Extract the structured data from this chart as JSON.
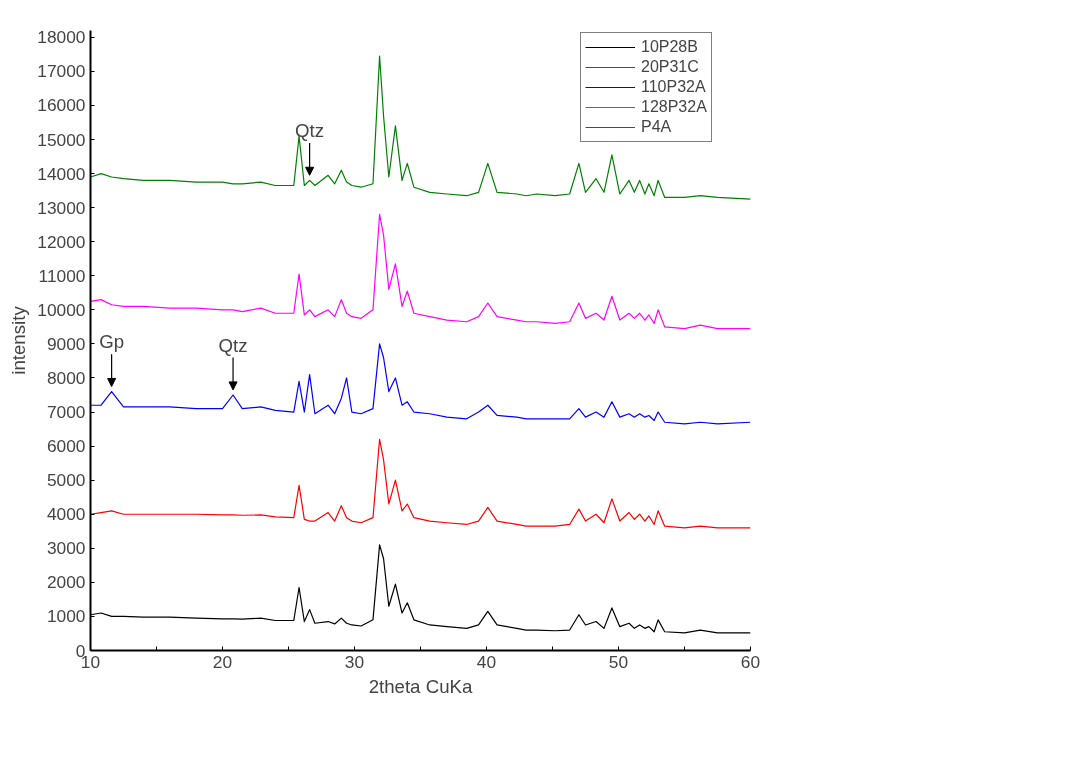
{
  "chart_data": {
    "type": "line",
    "xlabel": "2theta CuKa",
    "ylabel": "intensity",
    "xlim": [
      10,
      60
    ],
    "ylim": [
      0,
      18200
    ],
    "xticks": [
      10,
      {
        "value": 15,
        "label": null
      },
      20,
      {
        "value": 25,
        "label": null
      },
      30,
      {
        "value": 35,
        "label": null
      },
      40,
      {
        "value": 45,
        "label": null
      },
      50,
      {
        "value": 55,
        "label": null
      },
      60
    ],
    "yticks": [
      0,
      1000,
      2000,
      3000,
      4000,
      5000,
      6000,
      7000,
      8000,
      9000,
      10000,
      11000,
      12000,
      13000,
      14000,
      15000,
      16000,
      17000,
      18000
    ],
    "x": [
      10,
      10.8,
      11.6,
      12.5,
      14,
      16,
      18,
      20,
      20.8,
      21.5,
      22.9,
      24,
      25.4,
      25.8,
      26.2,
      26.6,
      27.0,
      28.0,
      28.5,
      29.0,
      29.4,
      29.8,
      30.5,
      31.4,
      31.9,
      32.2,
      32.6,
      33.1,
      33.6,
      34.0,
      34.5,
      35.7,
      37,
      38.5,
      39.4,
      40.1,
      40.8,
      42.3,
      43,
      43.8,
      45.2,
      46.3,
      47.0,
      47.5,
      48.3,
      48.9,
      49.5,
      50.1,
      50.8,
      51.2,
      51.6,
      52.0,
      52.3,
      52.7,
      53.0,
      53.5,
      55,
      56.2,
      57.5,
      60
    ],
    "series": [
      {
        "name": "10P28B",
        "color": "#000000",
        "values": [
          1050,
          1100,
          1000,
          1000,
          980,
          980,
          950,
          930,
          930,
          920,
          950,
          880,
          880,
          1850,
          850,
          1200,
          800,
          850,
          780,
          950,
          800,
          750,
          720,
          900,
          3100,
          2700,
          1300,
          1950,
          1100,
          1400,
          900,
          750,
          700,
          650,
          750,
          1150,
          750,
          650,
          600,
          600,
          580,
          600,
          1050,
          750,
          850,
          650,
          1250,
          700,
          800,
          650,
          750,
          650,
          700,
          550,
          900,
          550,
          520,
          600,
          520,
          520
        ]
      },
      {
        "name": "20P31C",
        "color": "#ff0000",
        "values": [
          4000,
          4050,
          4100,
          4000,
          4000,
          4000,
          4000,
          3980,
          3980,
          3970,
          3980,
          3920,
          3900,
          4850,
          3850,
          3800,
          3800,
          4050,
          3800,
          4250,
          3900,
          3800,
          3750,
          3900,
          6200,
          5600,
          4300,
          5000,
          4100,
          4300,
          3900,
          3800,
          3750,
          3700,
          3800,
          4200,
          3800,
          3700,
          3650,
          3650,
          3650,
          3700,
          4150,
          3800,
          4000,
          3750,
          4450,
          3800,
          4050,
          3850,
          4000,
          3800,
          3950,
          3700,
          4100,
          3650,
          3600,
          3650,
          3600,
          3600
        ]
      },
      {
        "name": "110P32A",
        "color": "#0000ff",
        "values": [
          7200,
          7200,
          7600,
          7150,
          7150,
          7150,
          7100,
          7100,
          7500,
          7100,
          7150,
          7050,
          7000,
          7900,
          7000,
          8100,
          6950,
          7200,
          6950,
          7400,
          8000,
          7000,
          6950,
          7100,
          9000,
          8600,
          7600,
          8000,
          7200,
          7300,
          7000,
          6950,
          6850,
          6800,
          7000,
          7200,
          6900,
          6850,
          6800,
          6800,
          6800,
          6800,
          7100,
          6850,
          7000,
          6850,
          7300,
          6850,
          6950,
          6850,
          6950,
          6850,
          6900,
          6750,
          7000,
          6700,
          6650,
          6700,
          6650,
          6700
        ]
      },
      {
        "name": "128P32A",
        "color": "#ff00ff",
        "values": [
          10250,
          10300,
          10150,
          10100,
          10100,
          10050,
          10050,
          10000,
          10000,
          9950,
          10050,
          9900,
          9900,
          11050,
          9850,
          10000,
          9800,
          10000,
          9800,
          10300,
          9900,
          9800,
          9750,
          10000,
          12800,
          12200,
          10600,
          11350,
          10100,
          10550,
          9900,
          9800,
          9700,
          9650,
          9800,
          10200,
          9800,
          9700,
          9650,
          9650,
          9600,
          9650,
          10200,
          9750,
          9900,
          9700,
          10400,
          9700,
          9900,
          9750,
          9900,
          9700,
          9850,
          9600,
          10000,
          9500,
          9450,
          9550,
          9450,
          9450
        ]
      },
      {
        "name": "P4A",
        "color": "#008000",
        "values": [
          13900,
          14000,
          13900,
          13850,
          13800,
          13800,
          13750,
          13750,
          13700,
          13700,
          13750,
          13650,
          13650,
          15100,
          13650,
          13800,
          13650,
          13950,
          13700,
          14100,
          13750,
          13650,
          13600,
          13700,
          17450,
          15700,
          13900,
          15400,
          13800,
          14300,
          13600,
          13450,
          13400,
          13350,
          13450,
          14300,
          13450,
          13400,
          13350,
          13400,
          13350,
          13400,
          14300,
          13450,
          13850,
          13450,
          14550,
          13400,
          13800,
          13450,
          13800,
          13400,
          13700,
          13350,
          13800,
          13300,
          13300,
          13350,
          13300,
          13250
        ]
      }
    ],
    "annotations": [
      {
        "text": "Qtz",
        "x": 26.6,
        "y": 13800
      },
      {
        "text": "Gp",
        "x": 11.6,
        "y": 7600
      },
      {
        "text": "Qtz",
        "x": 20.8,
        "y": 7500
      }
    ],
    "legend": "top right",
    "grid": false,
    "marker": "none",
    "line_style": "solid"
  }
}
